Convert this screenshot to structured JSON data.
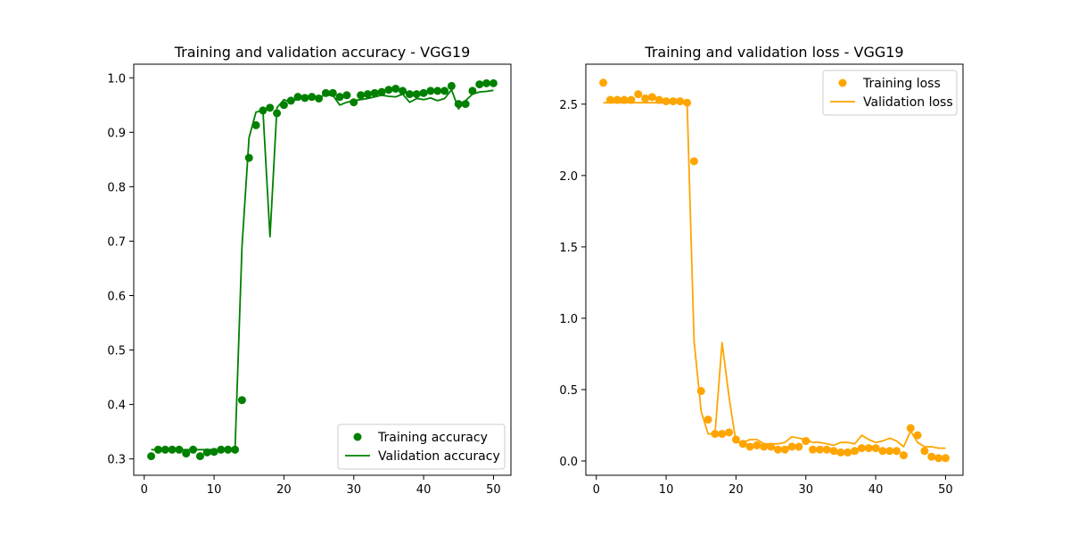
{
  "chart_data": [
    {
      "type": "line",
      "title": "Training and validation accuracy - VGG19",
      "xlabel": "",
      "ylabel": "",
      "xlim": [
        -1.5,
        52.5
      ],
      "ylim": [
        0.27,
        1.025
      ],
      "xticks": [
        0,
        10,
        20,
        30,
        40,
        50
      ],
      "yticks": [
        0.3,
        0.4,
        0.5,
        0.6,
        0.7,
        0.8,
        0.9,
        1.0
      ],
      "xtick_labels": [
        "0",
        "10",
        "20",
        "30",
        "40",
        "50"
      ],
      "ytick_labels": [
        "0.3",
        "0.4",
        "0.5",
        "0.6",
        "0.7",
        "0.8",
        "0.9",
        "1.0"
      ],
      "grid": false,
      "legend_position": "lower-right",
      "series": [
        {
          "name": "Training accuracy",
          "style": "markers",
          "color": "#008000",
          "x": [
            1,
            2,
            3,
            4,
            5,
            6,
            7,
            8,
            9,
            10,
            11,
            12,
            13,
            14,
            15,
            16,
            17,
            18,
            19,
            20,
            21,
            22,
            23,
            24,
            25,
            26,
            27,
            28,
            29,
            30,
            31,
            32,
            33,
            34,
            35,
            36,
            37,
            38,
            39,
            40,
            41,
            42,
            43,
            44,
            45,
            46,
            47,
            48,
            49,
            50
          ],
          "y": [
            0.305,
            0.317,
            0.317,
            0.317,
            0.317,
            0.31,
            0.317,
            0.305,
            0.312,
            0.313,
            0.317,
            0.317,
            0.317,
            0.408,
            0.853,
            0.913,
            0.94,
            0.945,
            0.935,
            0.95,
            0.958,
            0.965,
            0.963,
            0.965,
            0.962,
            0.972,
            0.972,
            0.965,
            0.968,
            0.955,
            0.968,
            0.97,
            0.972,
            0.974,
            0.978,
            0.98,
            0.976,
            0.97,
            0.97,
            0.972,
            0.976,
            0.976,
            0.976,
            0.985,
            0.952,
            0.952,
            0.976,
            0.988,
            0.99,
            0.99
          ]
        },
        {
          "name": "Validation accuracy",
          "style": "line",
          "color": "#008000",
          "x": [
            1,
            2,
            3,
            4,
            5,
            6,
            7,
            8,
            9,
            10,
            11,
            12,
            13,
            14,
            15,
            16,
            17,
            18,
            19,
            20,
            21,
            22,
            23,
            24,
            25,
            26,
            27,
            28,
            29,
            30,
            31,
            32,
            33,
            34,
            35,
            36,
            37,
            38,
            39,
            40,
            41,
            42,
            43,
            44,
            45,
            46,
            47,
            48,
            49,
            50
          ],
          "y": [
            0.317,
            0.317,
            0.317,
            0.317,
            0.317,
            0.317,
            0.317,
            0.317,
            0.317,
            0.317,
            0.317,
            0.317,
            0.317,
            0.69,
            0.89,
            0.937,
            0.94,
            0.708,
            0.945,
            0.96,
            0.955,
            0.962,
            0.965,
            0.96,
            0.965,
            0.968,
            0.968,
            0.95,
            0.955,
            0.958,
            0.96,
            0.962,
            0.965,
            0.968,
            0.966,
            0.965,
            0.97,
            0.955,
            0.962,
            0.96,
            0.963,
            0.958,
            0.962,
            0.978,
            0.943,
            0.958,
            0.97,
            0.974,
            0.975,
            0.977
          ]
        }
      ]
    },
    {
      "type": "line",
      "title": "Training and validation loss - VGG19",
      "xlabel": "",
      "ylabel": "",
      "xlim": [
        -1.5,
        52.5
      ],
      "ylim": [
        -0.1,
        2.78
      ],
      "xticks": [
        0,
        10,
        20,
        30,
        40,
        50
      ],
      "yticks": [
        0.0,
        0.5,
        1.0,
        1.5,
        2.0,
        2.5
      ],
      "xtick_labels": [
        "0",
        "10",
        "20",
        "30",
        "40",
        "50"
      ],
      "ytick_labels": [
        "0.0",
        "0.5",
        "1.0",
        "1.5",
        "2.0",
        "2.5"
      ],
      "grid": false,
      "legend_position": "upper-right",
      "series": [
        {
          "name": "Training loss",
          "style": "markers",
          "color": "#FFA500",
          "x": [
            1,
            2,
            3,
            4,
            5,
            6,
            7,
            8,
            9,
            10,
            11,
            12,
            13,
            14,
            15,
            16,
            17,
            18,
            19,
            20,
            21,
            22,
            23,
            24,
            25,
            26,
            27,
            28,
            29,
            30,
            31,
            32,
            33,
            34,
            35,
            36,
            37,
            38,
            39,
            40,
            41,
            42,
            43,
            44,
            45,
            46,
            47,
            48,
            49,
            50
          ],
          "y": [
            2.65,
            2.53,
            2.53,
            2.53,
            2.53,
            2.57,
            2.54,
            2.55,
            2.53,
            2.52,
            2.52,
            2.52,
            2.51,
            2.1,
            0.49,
            0.29,
            0.19,
            0.19,
            0.2,
            0.15,
            0.12,
            0.1,
            0.11,
            0.1,
            0.1,
            0.08,
            0.08,
            0.1,
            0.1,
            0.14,
            0.08,
            0.08,
            0.08,
            0.07,
            0.06,
            0.06,
            0.07,
            0.09,
            0.09,
            0.09,
            0.07,
            0.07,
            0.07,
            0.04,
            0.23,
            0.18,
            0.07,
            0.03,
            0.02,
            0.02
          ]
        },
        {
          "name": "Validation loss",
          "style": "line",
          "color": "#FFA500",
          "x": [
            1,
            2,
            3,
            4,
            5,
            6,
            7,
            8,
            9,
            10,
            11,
            12,
            13,
            14,
            15,
            16,
            17,
            18,
            19,
            20,
            21,
            22,
            23,
            24,
            25,
            26,
            27,
            28,
            29,
            30,
            31,
            32,
            33,
            34,
            35,
            36,
            37,
            38,
            39,
            40,
            41,
            42,
            43,
            44,
            45,
            46,
            47,
            48,
            49,
            50
          ],
          "y": [
            2.51,
            2.51,
            2.51,
            2.51,
            2.51,
            2.51,
            2.51,
            2.51,
            2.51,
            2.51,
            2.51,
            2.51,
            2.51,
            0.84,
            0.35,
            0.19,
            0.19,
            0.83,
            0.45,
            0.13,
            0.13,
            0.15,
            0.15,
            0.12,
            0.12,
            0.12,
            0.13,
            0.17,
            0.16,
            0.15,
            0.13,
            0.13,
            0.12,
            0.11,
            0.13,
            0.13,
            0.12,
            0.18,
            0.15,
            0.13,
            0.14,
            0.16,
            0.14,
            0.1,
            0.21,
            0.13,
            0.1,
            0.1,
            0.09,
            0.09
          ]
        }
      ]
    }
  ]
}
